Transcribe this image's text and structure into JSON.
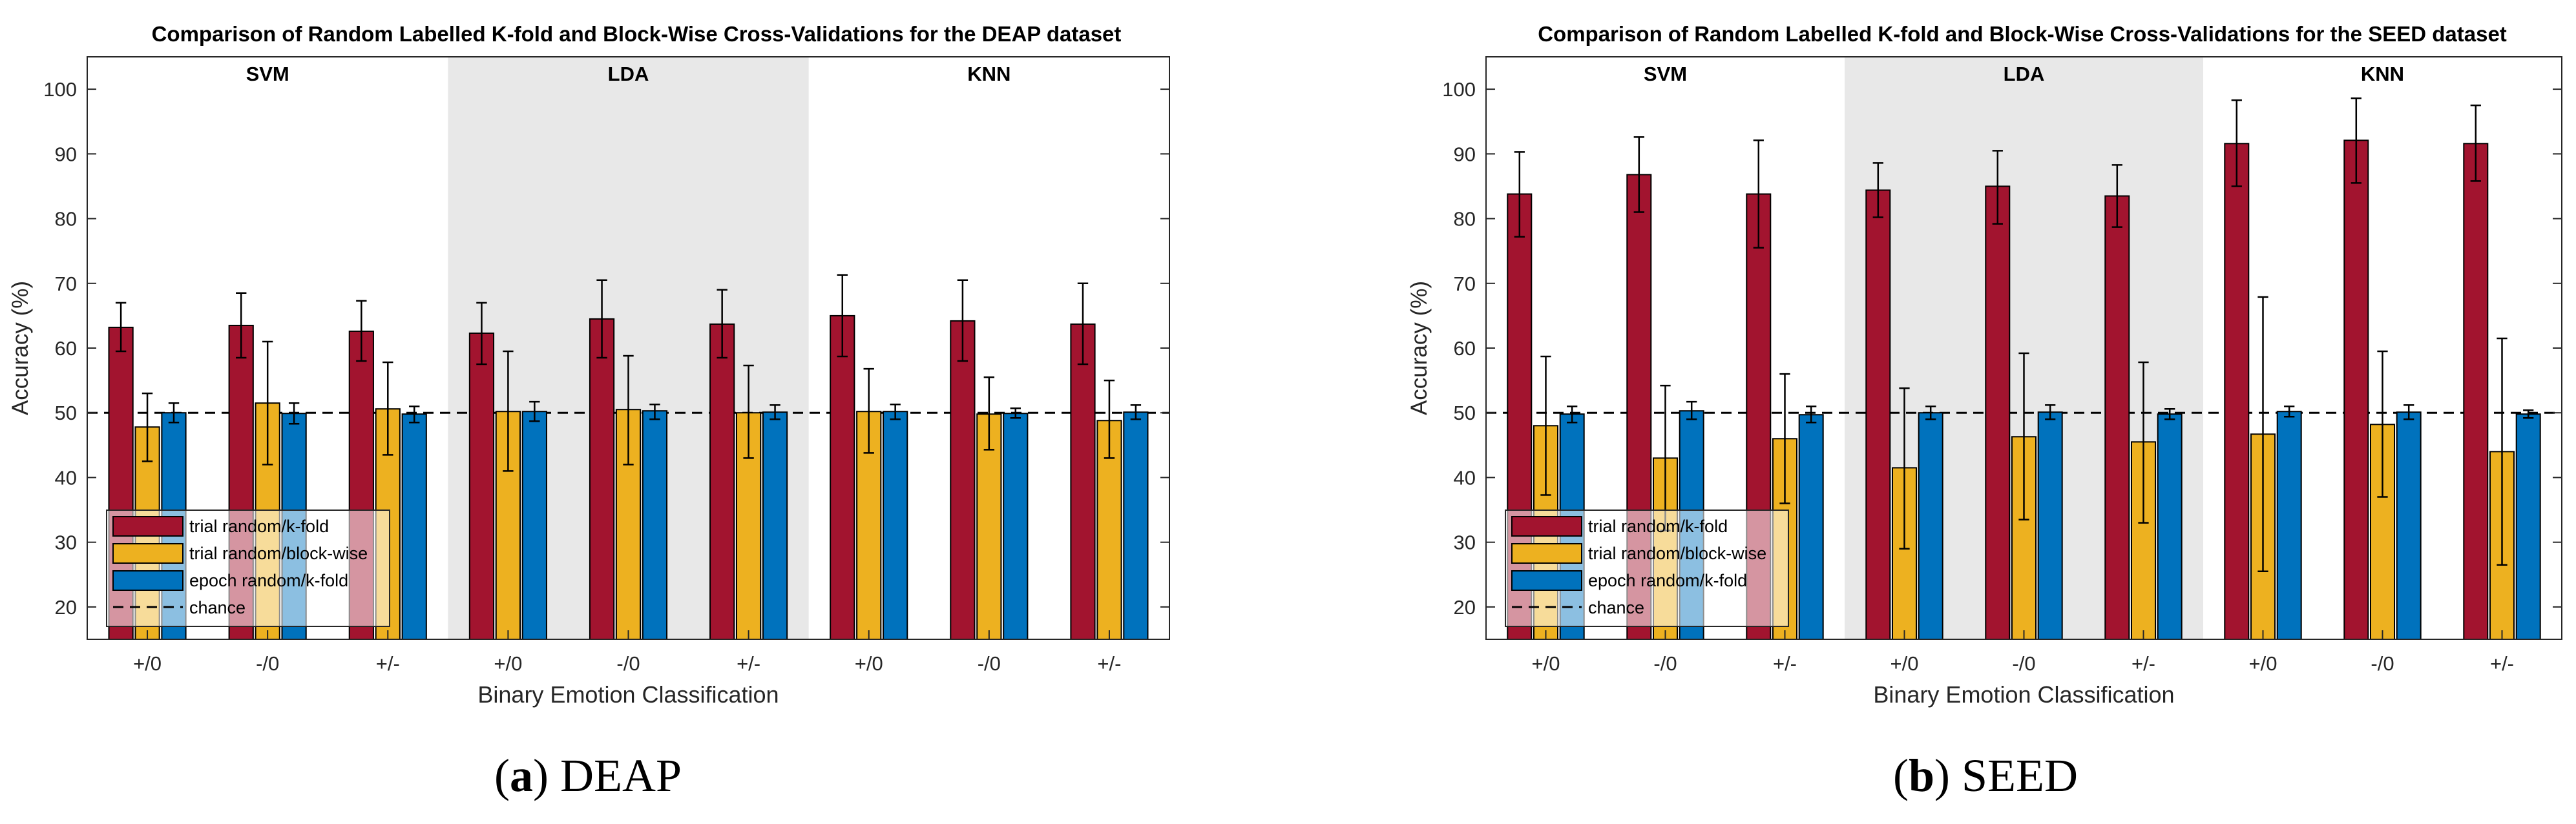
{
  "captions": [
    {
      "prefix": "(",
      "letter": "a",
      "suffix": ")",
      "text": " DEAP"
    },
    {
      "prefix": "(",
      "letter": "b",
      "suffix": ")",
      "text": " SEED"
    }
  ],
  "colors": {
    "trial_kfold": "#A2142F",
    "trial_block": "#EDB120",
    "epoch_kfold": "#0072BD",
    "shade": "#E8E8E8",
    "axis": "#262626"
  },
  "chart_data": [
    {
      "type": "bar",
      "title": "Comparison of Random Labelled K-fold and Block-Wise Cross-Validations for the DEAP dataset",
      "xlabel": "Binary Emotion Classification",
      "ylabel": "Accuracy (%)",
      "ylim": [
        15,
        105
      ],
      "yticks": [
        20,
        30,
        40,
        50,
        60,
        70,
        80,
        90,
        100
      ],
      "groups": [
        "SVM",
        "LDA",
        "KNN"
      ],
      "shaded_groups": [
        1
      ],
      "categories": [
        "+/0",
        "-/0",
        "+/-",
        "+/0",
        "-/0",
        "+/-",
        "+/0",
        "-/0",
        "+/-"
      ],
      "chance_level": 50,
      "legend_position": "bottom-left",
      "series": [
        {
          "name": "trial random/k-fold",
          "values": [
            63.2,
            63.5,
            62.6,
            62.3,
            64.5,
            63.7,
            65.0,
            64.2,
            63.7
          ],
          "err_low": [
            59.5,
            58.5,
            58.0,
            57.5,
            58.5,
            58.5,
            58.7,
            58.0,
            57.5
          ],
          "err_high": [
            67.0,
            68.5,
            67.3,
            67.0,
            70.5,
            69.0,
            71.3,
            70.5,
            70.0
          ]
        },
        {
          "name": "trial random/block-wise",
          "values": [
            47.8,
            51.5,
            50.6,
            50.2,
            50.5,
            50.0,
            50.2,
            49.8,
            48.8
          ],
          "err_low": [
            42.5,
            42.0,
            43.5,
            41.0,
            42.0,
            43.0,
            43.8,
            44.3,
            43.0
          ],
          "err_high": [
            53.0,
            61.0,
            57.8,
            59.5,
            58.8,
            57.3,
            56.8,
            55.5,
            55.0
          ]
        },
        {
          "name": "epoch random/k-fold",
          "values": [
            50.0,
            49.9,
            49.8,
            50.2,
            50.3,
            50.1,
            50.2,
            49.9,
            50.1
          ],
          "err_low": [
            48.5,
            48.3,
            48.5,
            48.7,
            49.0,
            49.0,
            49.0,
            49.2,
            49.0
          ],
          "err_high": [
            51.5,
            51.5,
            51.0,
            51.7,
            51.3,
            51.2,
            51.3,
            50.7,
            51.2
          ]
        },
        {
          "name": "chance",
          "type": "dashed-line",
          "value": 50
        }
      ]
    },
    {
      "type": "bar",
      "title": "Comparison of Random Labelled K-fold and Block-Wise Cross-Validations for the SEED dataset",
      "xlabel": "Binary Emotion Classification",
      "ylabel": "Accuracy (%)",
      "ylim": [
        15,
        105
      ],
      "yticks": [
        20,
        30,
        40,
        50,
        60,
        70,
        80,
        90,
        100
      ],
      "groups": [
        "SVM",
        "LDA",
        "KNN"
      ],
      "shaded_groups": [
        1
      ],
      "categories": [
        "+/0",
        "-/0",
        "+/-",
        "+/0",
        "-/0",
        "+/-",
        "+/0",
        "-/0",
        "+/-"
      ],
      "chance_level": 50,
      "legend_position": "bottom-left",
      "series": [
        {
          "name": "trial random/k-fold",
          "values": [
            83.8,
            86.8,
            83.8,
            84.4,
            85.0,
            83.5,
            91.6,
            92.1,
            91.6
          ],
          "err_low": [
            77.2,
            81.0,
            75.5,
            80.2,
            79.2,
            78.7,
            85.0,
            85.5,
            85.8
          ],
          "err_high": [
            90.3,
            92.6,
            92.1,
            88.6,
            90.5,
            88.3,
            98.3,
            98.6,
            97.5
          ]
        },
        {
          "name": "trial random/block-wise",
          "values": [
            48.0,
            43.0,
            46.0,
            41.5,
            46.3,
            45.5,
            46.7,
            48.2,
            44.0
          ],
          "err_low": [
            37.3,
            31.8,
            36.0,
            29.0,
            33.5,
            33.0,
            25.5,
            37.0,
            26.5
          ],
          "err_high": [
            58.7,
            54.2,
            56.0,
            53.8,
            59.2,
            57.8,
            67.9,
            59.5,
            61.5
          ]
        },
        {
          "name": "epoch random/k-fold",
          "values": [
            49.8,
            50.3,
            49.7,
            50.0,
            50.1,
            49.8,
            50.2,
            50.1,
            49.8
          ],
          "err_low": [
            48.5,
            49.0,
            48.5,
            49.0,
            49.0,
            49.0,
            49.4,
            49.0,
            49.2
          ],
          "err_high": [
            51.0,
            51.7,
            51.0,
            51.0,
            51.2,
            50.6,
            51.0,
            51.2,
            50.4
          ]
        },
        {
          "name": "chance",
          "type": "dashed-line",
          "value": 50
        }
      ]
    }
  ]
}
